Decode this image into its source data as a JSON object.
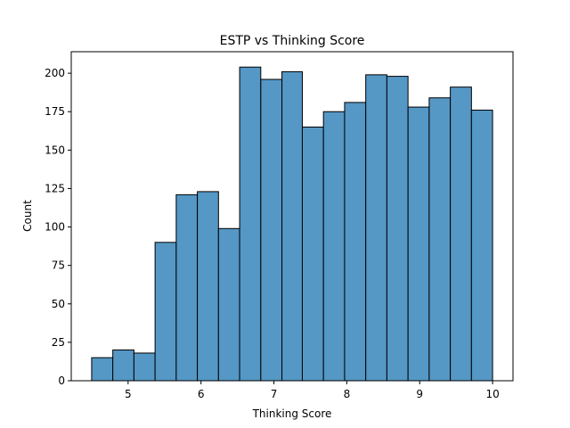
{
  "chart_data": {
    "type": "bar",
    "title": "ESTP vs Thinking Score",
    "xlabel": "Thinking Score",
    "ylabel": "Count",
    "bin_edges": [
      4.5,
      4.79,
      5.08,
      5.37,
      5.66,
      5.95,
      6.24,
      6.53,
      6.82,
      7.11,
      7.39,
      7.68,
      7.97,
      8.26,
      8.55,
      8.84,
      9.13,
      9.42,
      9.71,
      10.0
    ],
    "values": [
      15,
      20,
      18,
      90,
      121,
      123,
      99,
      204,
      196,
      201,
      165,
      175,
      181,
      199,
      198,
      178,
      184,
      191,
      176
    ],
    "xlim": [
      4.22,
      10.28
    ],
    "ylim": [
      0,
      214
    ],
    "xticks": [
      5,
      6,
      7,
      8,
      9,
      10
    ],
    "yticks": [
      0,
      25,
      50,
      75,
      100,
      125,
      150,
      175,
      200
    ],
    "bar_color": "#5597c5",
    "edge_color": "#000000",
    "grid": false
  }
}
